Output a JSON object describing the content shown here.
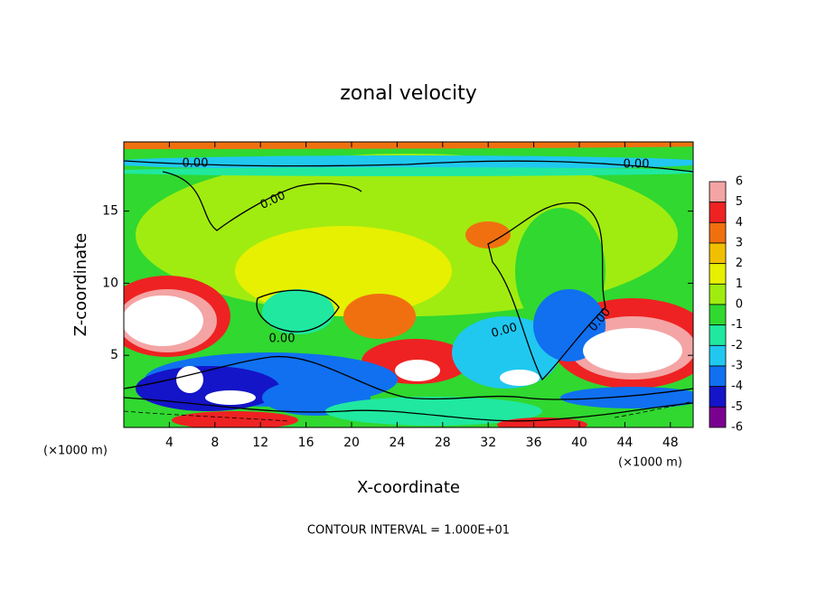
{
  "chart_data": {
    "type": "contour",
    "title": "zonal velocity",
    "x_label": "X-coordinate",
    "y_label": "Z-coordinate",
    "x_unit": "(×1000 m)",
    "footer": "CONTOUR INTERVAL = 1.000E+01",
    "contour_labels": [
      "0.00",
      "0.00",
      "0.00",
      "0.00",
      "0.00",
      "0.00"
    ],
    "xlim": [
      0,
      50
    ],
    "xticks": [
      4,
      8,
      12,
      16,
      20,
      24,
      28,
      32,
      36,
      40,
      44,
      48
    ],
    "ylim": [
      0,
      19.8
    ],
    "yticks": [
      5,
      10,
      15
    ],
    "colorbar": {
      "levels": [
        6,
        5,
        4,
        3,
        2,
        1,
        0,
        -1,
        -2,
        -3,
        -4,
        -5,
        -6
      ],
      "colors": [
        "#f4a4a4",
        "#ee2222",
        "#f07010",
        "#f0c000",
        "#e6f000",
        "#a0ec10",
        "#30d830",
        "#20e8a0",
        "#20c8f0",
        "#1070f0",
        "#1414c8",
        "#7a0090"
      ]
    }
  }
}
